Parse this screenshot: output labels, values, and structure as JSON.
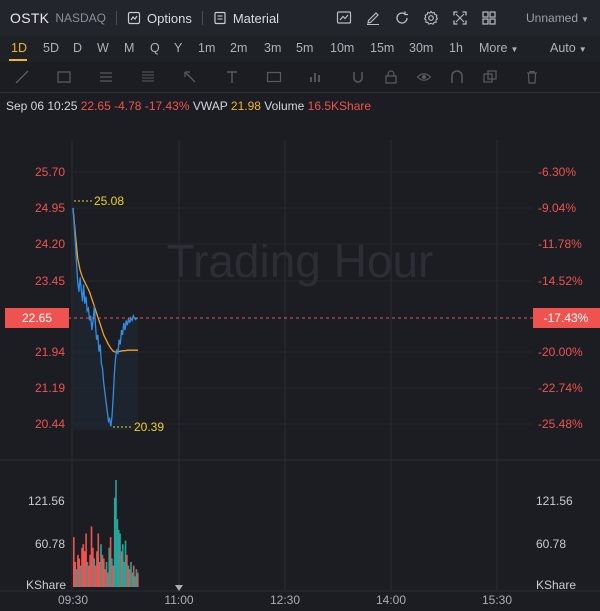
{
  "header": {
    "symbol": "OSTK",
    "exchange": "NASDAQ",
    "options_label": "Options",
    "material_label": "Material",
    "layout_name": "Unnamed"
  },
  "timeframes": [
    {
      "label": "1D",
      "active": true
    },
    {
      "label": "5D"
    },
    {
      "label": "D"
    },
    {
      "label": "W"
    },
    {
      "label": "M"
    },
    {
      "label": "Q"
    },
    {
      "label": "Y"
    },
    {
      "label": "1m"
    },
    {
      "label": "2m"
    },
    {
      "label": "3m"
    },
    {
      "label": "5m"
    },
    {
      "label": "10m"
    },
    {
      "label": "15m"
    },
    {
      "label": "30m"
    },
    {
      "label": "1h"
    },
    {
      "label": "More"
    }
  ],
  "scale_mode": "Auto",
  "info": {
    "datetime": "Sep 06 10:25",
    "price": "22.65",
    "change": "-4.78",
    "change_pct": "-17.43%",
    "vwap_label": "VWAP",
    "vwap": "21.98",
    "volume_label": "Volume",
    "volume": "16.5KShare"
  },
  "watermark": "Trading Hour",
  "colors": {
    "background": "#1b1d22",
    "price_line": "#2f8fe6",
    "vwap_line": "#f0a030",
    "up": "#26a69a",
    "down": "#ef5350",
    "highlight": "#f0d21e"
  },
  "chart_data": {
    "type": "line",
    "x_ticks": [
      "09:30",
      "11:00",
      "12:30",
      "14:00",
      "15:30"
    ],
    "price_axis_left": [
      "25.70",
      "24.95",
      "24.20",
      "23.45",
      "22.65",
      "21.94",
      "21.19",
      "20.44"
    ],
    "pct_axis_right": [
      "-6.30%",
      "-9.04%",
      "-11.78%",
      "-14.52%",
      "-17.43%",
      "-20.00%",
      "-22.74%",
      "-25.48%"
    ],
    "ylim": [
      20.44,
      25.7
    ],
    "current_price": 22.65,
    "current_pct": "-17.43%",
    "high_label": "25.08",
    "low_label": "20.39",
    "volume_axis": [
      "121.56",
      "60.78"
    ],
    "volume_unit": "KShare",
    "series": [
      {
        "name": "Price",
        "x": [
          0,
          1,
          2,
          3,
          4,
          5,
          6,
          7,
          8,
          9,
          10,
          11,
          12,
          13,
          14,
          15,
          16,
          17,
          18,
          19,
          20,
          21,
          22,
          23,
          24,
          25,
          26,
          27,
          28,
          29,
          30,
          31,
          32,
          33,
          34,
          35,
          36,
          37,
          38,
          39,
          40,
          41,
          42,
          43,
          44,
          45,
          46,
          47,
          48,
          49,
          50,
          51,
          52,
          53,
          54,
          55
        ],
        "values": [
          24.95,
          24.6,
          24.2,
          23.8,
          23.4,
          23.2,
          23.5,
          23.25,
          23.0,
          23.35,
          22.95,
          23.1,
          22.8,
          22.85,
          22.6,
          22.7,
          22.4,
          22.6,
          22.9,
          22.5,
          22.2,
          22.3,
          21.95,
          22.1,
          21.7,
          21.6,
          21.3,
          21.1,
          20.9,
          20.7,
          20.5,
          20.55,
          20.39,
          20.6,
          21.0,
          21.5,
          21.8,
          22.0,
          21.9,
          22.2,
          22.1,
          22.4,
          22.3,
          22.55,
          22.4,
          22.6,
          22.5,
          22.65,
          22.55,
          22.65,
          22.6,
          22.7,
          22.65,
          22.62,
          22.65,
          22.65
        ]
      },
      {
        "name": "VWAP",
        "x": [
          0,
          2,
          4,
          6,
          8,
          10,
          12,
          14,
          16,
          18,
          20,
          22,
          24,
          26,
          28,
          30,
          32,
          34,
          36,
          38,
          40,
          42,
          44,
          46,
          48,
          50,
          52,
          55
        ],
        "values": [
          24.95,
          24.4,
          23.9,
          23.65,
          23.5,
          23.4,
          23.3,
          23.2,
          23.05,
          22.9,
          22.75,
          22.6,
          22.45,
          22.3,
          22.2,
          22.1,
          22.02,
          21.96,
          21.94,
          21.95,
          21.96,
          21.97,
          21.97,
          21.98,
          21.98,
          21.98,
          21.98,
          21.98
        ]
      }
    ],
    "volume": [
      {
        "v": 70,
        "up": false
      },
      {
        "v": 35,
        "up": false
      },
      {
        "v": 25,
        "up": true
      },
      {
        "v": 45,
        "up": false
      },
      {
        "v": 40,
        "up": false
      },
      {
        "v": 30,
        "up": true
      },
      {
        "v": 55,
        "up": false
      },
      {
        "v": 60,
        "up": false
      },
      {
        "v": 50,
        "up": false
      },
      {
        "v": 75,
        "up": false
      },
      {
        "v": 35,
        "up": true
      },
      {
        "v": 30,
        "up": false
      },
      {
        "v": 45,
        "up": false
      },
      {
        "v": 85,
        "up": false
      },
      {
        "v": 55,
        "up": false
      },
      {
        "v": 40,
        "up": true
      },
      {
        "v": 30,
        "up": false
      },
      {
        "v": 50,
        "up": false
      },
      {
        "v": 75,
        "up": false
      },
      {
        "v": 35,
        "up": false
      },
      {
        "v": 60,
        "up": true
      },
      {
        "v": 45,
        "up": false
      },
      {
        "v": 40,
        "up": false
      },
      {
        "v": 25,
        "up": false
      },
      {
        "v": 35,
        "up": true
      },
      {
        "v": 20,
        "up": false
      },
      {
        "v": 55,
        "up": true
      },
      {
        "v": 70,
        "up": false
      },
      {
        "v": 40,
        "up": true
      },
      {
        "v": 30,
        "up": false
      },
      {
        "v": 125,
        "up": true
      },
      {
        "v": 150,
        "up": true
      },
      {
        "v": 95,
        "up": true
      },
      {
        "v": 80,
        "up": true
      },
      {
        "v": 75,
        "up": true
      },
      {
        "v": 50,
        "up": false
      },
      {
        "v": 60,
        "up": true
      },
      {
        "v": 35,
        "up": true
      },
      {
        "v": 65,
        "up": true
      },
      {
        "v": 45,
        "up": false
      },
      {
        "v": 30,
        "up": true
      },
      {
        "v": 25,
        "up": false
      },
      {
        "v": 35,
        "up": true
      },
      {
        "v": 20,
        "up": true
      },
      {
        "v": 30,
        "up": false
      },
      {
        "v": 15,
        "up": true
      },
      {
        "v": 25,
        "up": true
      },
      {
        "v": 20,
        "up": false
      }
    ]
  }
}
